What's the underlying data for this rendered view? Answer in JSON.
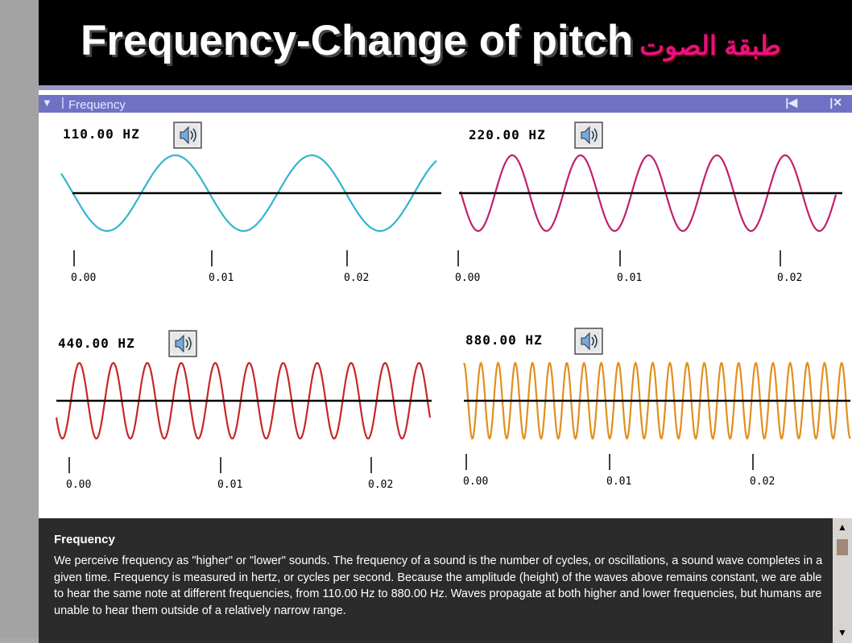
{
  "slide": {
    "title": "Frequency-Change of pitch",
    "title_arabic": "طبقة الصوت",
    "colors": {
      "background": "#000000",
      "title": "#ffffff",
      "arabic": "#e8117f"
    }
  },
  "window": {
    "header_title": "Frequency",
    "menu_icon": "triangle-down-icon",
    "nav_icon": "skip-back-icon",
    "close_icon": "close-icon"
  },
  "panels": [
    {
      "frequency_label": "110.00 HZ",
      "speaker_icon": "speaker-icon",
      "color": "#33b5d0",
      "tick_labels": [
        "0.00",
        "0.01",
        "0.02"
      ]
    },
    {
      "frequency_label": "220.00 HZ",
      "speaker_icon": "speaker-icon",
      "color": "#c0206e",
      "tick_labels": [
        "0.00",
        "0.01",
        "0.02"
      ]
    },
    {
      "frequency_label": "440.00 HZ",
      "speaker_icon": "speaker-icon",
      "color": "#c62828",
      "tick_labels": [
        "0.00",
        "0.01",
        "0.02"
      ]
    },
    {
      "frequency_label": "880.00 HZ",
      "speaker_icon": "speaker-icon",
      "color": "#e08f1e",
      "tick_labels": [
        "0.00",
        "0.01",
        "0.02"
      ]
    }
  ],
  "info": {
    "title": "Frequency",
    "text": "We perceive frequency as \"higher\" or \"lower\" sounds. The frequency of a sound is the number of cycles, or oscillations, a sound wave completes in a given time. Frequency is measured in hertz, or cycles per second. Because the amplitude (height) of the waves above remains constant, we are able to hear the same note at different frequencies, from 110.00 Hz to 880.00 Hz. Waves propagate at both higher and lower frequencies, but humans are unable to hear them outside of a relatively narrow range."
  }
}
